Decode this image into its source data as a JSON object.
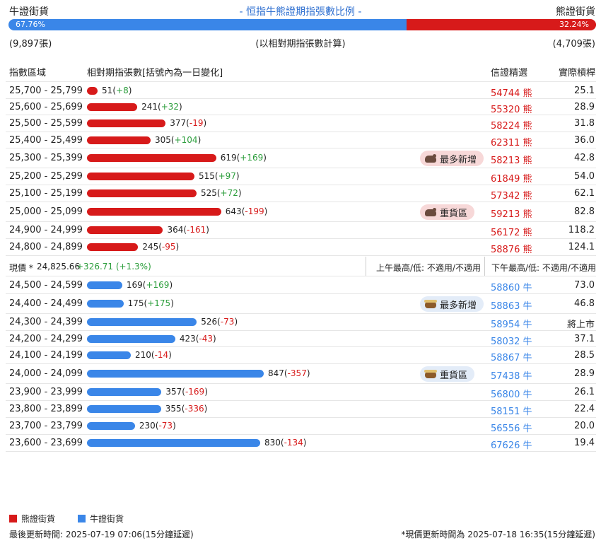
{
  "header": {
    "bull_label": "牛證街貨",
    "title": "- 恒指牛熊證期指張數比例 -",
    "bear_label": "熊證街貨",
    "bull_pct": "67.76%",
    "bear_pct": "32.24%",
    "bull_fraction": 0.6776,
    "bull_count": "(9,897張)",
    "note": "(以相對期指張數計算)",
    "bear_count": "(4,709張)"
  },
  "columns": {
    "range": "指數區域",
    "qty": "相對期指張數[括號內為一日變化]",
    "pick": "信證精選",
    "lev": "實際槓桿"
  },
  "bear_rows": [
    {
      "range": "25,700 - 25,799",
      "qty": "51",
      "chg": "+8",
      "code": "54744",
      "lev": "25.1"
    },
    {
      "range": "25,600 - 25,699",
      "qty": "241",
      "chg": "+32",
      "code": "55320",
      "lev": "28.9"
    },
    {
      "range": "25,500 - 25,599",
      "qty": "377",
      "chg": "-19",
      "code": "58224",
      "lev": "31.8"
    },
    {
      "range": "25,400 - 25,499",
      "qty": "305",
      "chg": "+104",
      "code": "62311",
      "lev": "36.0"
    },
    {
      "range": "25,300 - 25,399",
      "qty": "619",
      "chg": "+169",
      "code": "58213",
      "lev": "42.8",
      "badge": "最多新增"
    },
    {
      "range": "25,200 - 25,299",
      "qty": "515",
      "chg": "+97",
      "code": "61849",
      "lev": "54.0"
    },
    {
      "range": "25,100 - 25,199",
      "qty": "525",
      "chg": "+72",
      "code": "57342",
      "lev": "62.1"
    },
    {
      "range": "25,000 - 25,099",
      "qty": "643",
      "chg": "-199",
      "code": "59213",
      "lev": "82.8",
      "badge": "重貨區"
    },
    {
      "range": "24,900 - 24,999",
      "qty": "364",
      "chg": "-161",
      "code": "56172",
      "lev": "118.2"
    },
    {
      "range": "24,800 - 24,899",
      "qty": "245",
      "chg": "-95",
      "code": "58876",
      "lev": "124.1"
    }
  ],
  "bear_suffix": "熊",
  "bull_suffix": "牛",
  "price": {
    "label": "現價 *",
    "value": "24,825.66",
    "change": "+326.71 (+1.3%)",
    "am": "上午最高/低: 不適用/不適用",
    "pm": "下午最高/低: 不適用/不適用"
  },
  "bull_rows": [
    {
      "range": "24,500 - 24,599",
      "qty": "169",
      "chg": "+169",
      "code": "58860",
      "lev": "73.0"
    },
    {
      "range": "24,400 - 24,499",
      "qty": "175",
      "chg": "+175",
      "code": "58863",
      "lev": "46.8",
      "badge": "最多新增"
    },
    {
      "range": "24,300 - 24,399",
      "qty": "526",
      "chg": "-73",
      "code": "58954",
      "lev": "將上市"
    },
    {
      "range": "24,200 - 24,299",
      "qty": "423",
      "chg": "-43",
      "code": "58032",
      "lev": "37.1"
    },
    {
      "range": "24,100 - 24,199",
      "qty": "210",
      "chg": "-14",
      "code": "58867",
      "lev": "28.5"
    },
    {
      "range": "24,000 - 24,099",
      "qty": "847",
      "chg": "-357",
      "code": "57438",
      "lev": "28.9",
      "badge": "重貨區"
    },
    {
      "range": "23,900 - 23,999",
      "qty": "357",
      "chg": "-169",
      "code": "56800",
      "lev": "26.1"
    },
    {
      "range": "23,800 - 23,899",
      "qty": "355",
      "chg": "-336",
      "code": "58151",
      "lev": "22.4"
    },
    {
      "range": "23,700 - 23,799",
      "qty": "230",
      "chg": "-73",
      "code": "56556",
      "lev": "20.0"
    },
    {
      "range": "23,600 - 23,699",
      "qty": "830",
      "chg": "-134",
      "code": "67626",
      "lev": "19.4"
    }
  ],
  "legend": {
    "bear": "熊證街貨",
    "bull": "牛證街貨"
  },
  "footer": {
    "left": "最後更新時間: 2025-07-19 07:06(15分鐘延遲)",
    "right": "*現價更新時間為 2025-07-18 16:35(15分鐘延遲)"
  },
  "colors": {
    "bear": "#d71a1a",
    "bull": "#3a86e8"
  }
}
